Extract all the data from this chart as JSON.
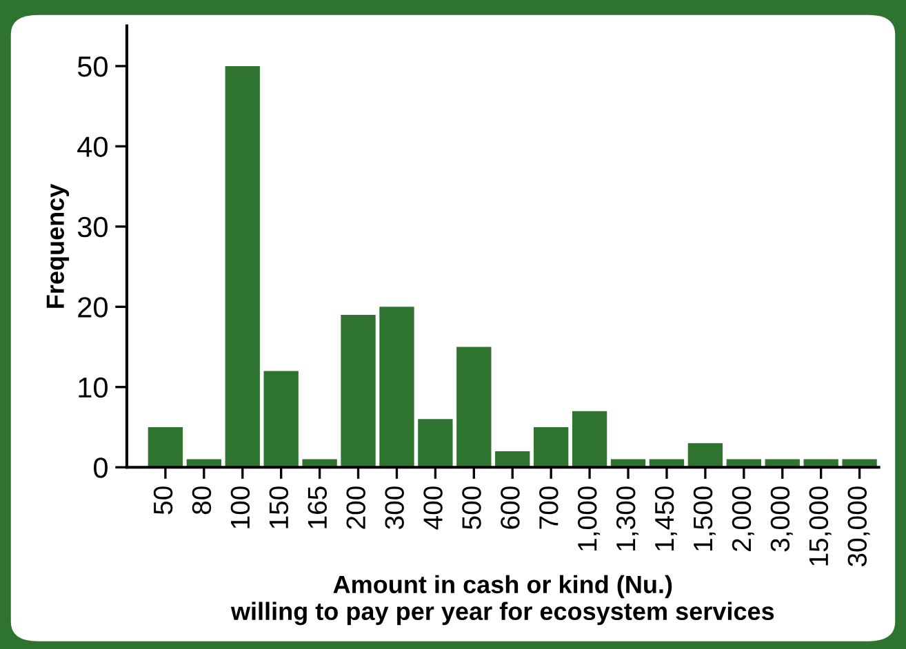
{
  "chart_data": {
    "type": "bar",
    "xlabel": "Amount in cash or kind (Nu.)\nwilling to pay per year for ecosystem services",
    "ylabel": "Frequency",
    "categories": [
      "50",
      "80",
      "100",
      "150",
      "165",
      "200",
      "300",
      "400",
      "500",
      "600",
      "700",
      "1,000",
      "1,300",
      "1,450",
      "1,500",
      "2,000",
      "3,000",
      "15,000",
      "30,000"
    ],
    "values": [
      5,
      1,
      50,
      12,
      1,
      19,
      20,
      6,
      15,
      2,
      5,
      7,
      1,
      1,
      3,
      1,
      1,
      1,
      1
    ],
    "color": "#2e7430",
    "ylim": [
      0,
      55
    ],
    "yticks": [
      0,
      10,
      20,
      30,
      40,
      50
    ],
    "grid": false
  }
}
